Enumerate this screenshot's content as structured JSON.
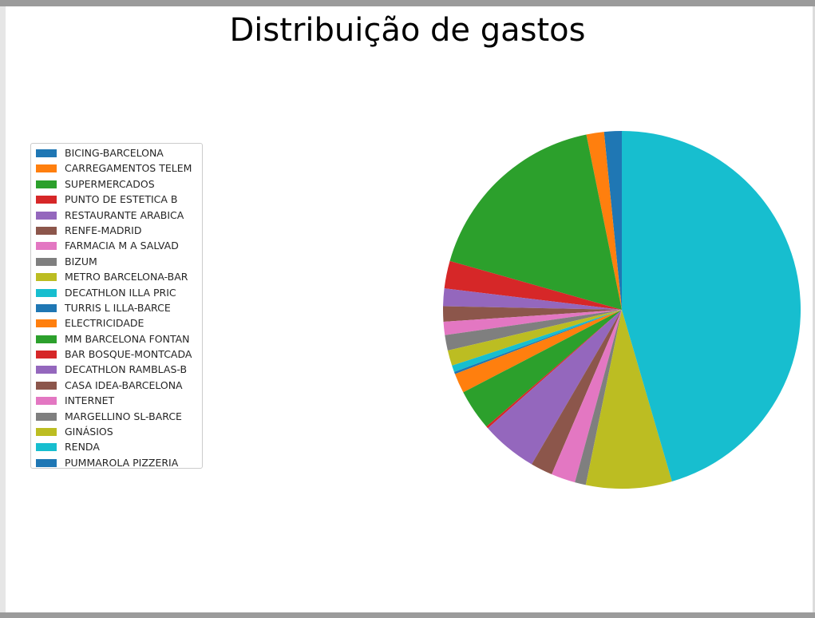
{
  "chart_data": {
    "type": "pie",
    "title": "Distribuição de gastos",
    "legend_position": "left",
    "start_angle_deg": 90,
    "counterclockwise": true,
    "slices": [
      {
        "label": "BICING-BARCELONA",
        "value": 1.6,
        "color": "#1f77b4"
      },
      {
        "label": "CARREGAMENTOS TELEM",
        "value": 1.6,
        "color": "#ff7f0e"
      },
      {
        "label": "SUPERMERCADOS",
        "value": 17.5,
        "color": "#2ca02c"
      },
      {
        "label": "PUNTO DE ESTETICA B",
        "value": 2.5,
        "color": "#d62728"
      },
      {
        "label": "RESTAURANTE ARABICA",
        "value": 1.6,
        "color": "#9467bd"
      },
      {
        "label": "RENFE-MADRID",
        "value": 1.4,
        "color": "#8c564b"
      },
      {
        "label": "FARMACIA M A SALVAD",
        "value": 1.2,
        "color": "#e377c2"
      },
      {
        "label": "BIZUM",
        "value": 1.4,
        "color": "#7f7f7f"
      },
      {
        "label": "METRO BARCELONA-BAR",
        "value": 1.4,
        "color": "#bcbd22"
      },
      {
        "label": "DECATHLON ILLA PRIC",
        "value": 0.6,
        "color": "#17becf"
      },
      {
        "label": "TURRIS L ILLA-BARCE",
        "value": 0.2,
        "color": "#1f77b4"
      },
      {
        "label": "ELECTRICIDADE",
        "value": 1.8,
        "color": "#ff7f0e"
      },
      {
        "label": "MM BARCELONA FONTAN",
        "value": 3.7,
        "color": "#2ca02c"
      },
      {
        "label": "BAR BOSQUE-MONTCADA",
        "value": 0.2,
        "color": "#d62728"
      },
      {
        "label": "DECATHLON RAMBLAS-B",
        "value": 5.1,
        "color": "#9467bd"
      },
      {
        "label": "CASA IDEA-BARCELONA",
        "value": 2.0,
        "color": "#8c564b"
      },
      {
        "label": "INTERNET",
        "value": 2.2,
        "color": "#e377c2"
      },
      {
        "label": "MARGELLINO SL-BARCE",
        "value": 1.0,
        "color": "#7f7f7f"
      },
      {
        "label": "GINÁSIOS",
        "value": 7.8,
        "color": "#bcbd22"
      },
      {
        "label": "RENDA",
        "value": 45.7,
        "color": "#17becf"
      },
      {
        "label": "PUMMAROLA PIZZERIA",
        "value": 0.0,
        "color": "#1f77b4"
      }
    ]
  }
}
